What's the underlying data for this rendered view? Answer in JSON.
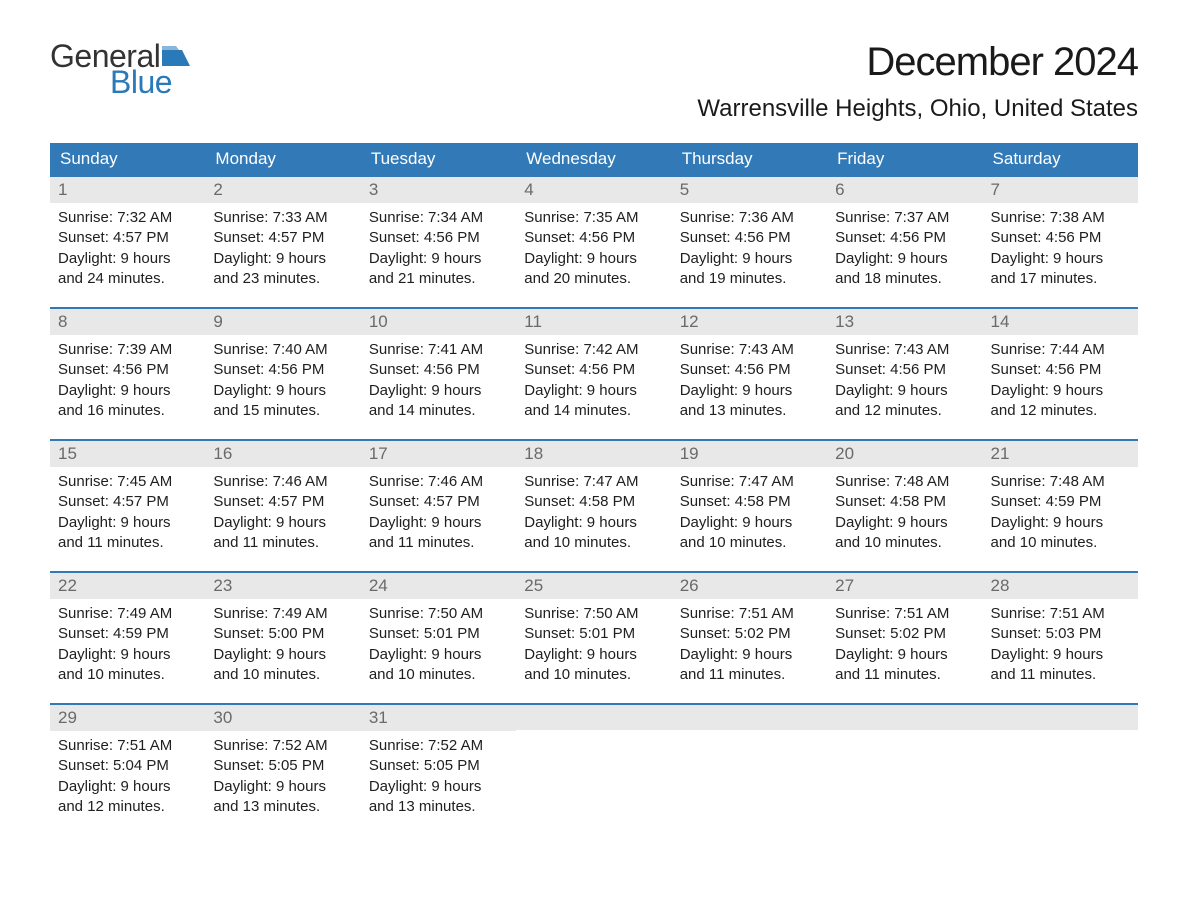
{
  "logo": {
    "word1": "General",
    "word2": "Blue",
    "flag_color": "#2a7ab9",
    "text1_color": "#333333",
    "text2_color": "#2a7ab9"
  },
  "title": "December 2024",
  "location": "Warrensville Heights, Ohio, United States",
  "colors": {
    "header_bg": "#3179b7",
    "header_text": "#ffffff",
    "daynum_bg": "#e8e8e8",
    "daynum_text": "#6a6a6a",
    "body_text": "#202020",
    "row_border": "#3179b7",
    "page_bg": "#ffffff"
  },
  "typography": {
    "title_size": 40,
    "location_size": 24,
    "weekday_size": 17,
    "daynum_size": 17,
    "body_size": 15
  },
  "weekdays": [
    "Sunday",
    "Monday",
    "Tuesday",
    "Wednesday",
    "Thursday",
    "Friday",
    "Saturday"
  ],
  "weeks": [
    [
      {
        "num": "1",
        "sunrise": "Sunrise: 7:32 AM",
        "sunset": "Sunset: 4:57 PM",
        "d1": "Daylight: 9 hours",
        "d2": "and 24 minutes."
      },
      {
        "num": "2",
        "sunrise": "Sunrise: 7:33 AM",
        "sunset": "Sunset: 4:57 PM",
        "d1": "Daylight: 9 hours",
        "d2": "and 23 minutes."
      },
      {
        "num": "3",
        "sunrise": "Sunrise: 7:34 AM",
        "sunset": "Sunset: 4:56 PM",
        "d1": "Daylight: 9 hours",
        "d2": "and 21 minutes."
      },
      {
        "num": "4",
        "sunrise": "Sunrise: 7:35 AM",
        "sunset": "Sunset: 4:56 PM",
        "d1": "Daylight: 9 hours",
        "d2": "and 20 minutes."
      },
      {
        "num": "5",
        "sunrise": "Sunrise: 7:36 AM",
        "sunset": "Sunset: 4:56 PM",
        "d1": "Daylight: 9 hours",
        "d2": "and 19 minutes."
      },
      {
        "num": "6",
        "sunrise": "Sunrise: 7:37 AM",
        "sunset": "Sunset: 4:56 PM",
        "d1": "Daylight: 9 hours",
        "d2": "and 18 minutes."
      },
      {
        "num": "7",
        "sunrise": "Sunrise: 7:38 AM",
        "sunset": "Sunset: 4:56 PM",
        "d1": "Daylight: 9 hours",
        "d2": "and 17 minutes."
      }
    ],
    [
      {
        "num": "8",
        "sunrise": "Sunrise: 7:39 AM",
        "sunset": "Sunset: 4:56 PM",
        "d1": "Daylight: 9 hours",
        "d2": "and 16 minutes."
      },
      {
        "num": "9",
        "sunrise": "Sunrise: 7:40 AM",
        "sunset": "Sunset: 4:56 PM",
        "d1": "Daylight: 9 hours",
        "d2": "and 15 minutes."
      },
      {
        "num": "10",
        "sunrise": "Sunrise: 7:41 AM",
        "sunset": "Sunset: 4:56 PM",
        "d1": "Daylight: 9 hours",
        "d2": "and 14 minutes."
      },
      {
        "num": "11",
        "sunrise": "Sunrise: 7:42 AM",
        "sunset": "Sunset: 4:56 PM",
        "d1": "Daylight: 9 hours",
        "d2": "and 14 minutes."
      },
      {
        "num": "12",
        "sunrise": "Sunrise: 7:43 AM",
        "sunset": "Sunset: 4:56 PM",
        "d1": "Daylight: 9 hours",
        "d2": "and 13 minutes."
      },
      {
        "num": "13",
        "sunrise": "Sunrise: 7:43 AM",
        "sunset": "Sunset: 4:56 PM",
        "d1": "Daylight: 9 hours",
        "d2": "and 12 minutes."
      },
      {
        "num": "14",
        "sunrise": "Sunrise: 7:44 AM",
        "sunset": "Sunset: 4:56 PM",
        "d1": "Daylight: 9 hours",
        "d2": "and 12 minutes."
      }
    ],
    [
      {
        "num": "15",
        "sunrise": "Sunrise: 7:45 AM",
        "sunset": "Sunset: 4:57 PM",
        "d1": "Daylight: 9 hours",
        "d2": "and 11 minutes."
      },
      {
        "num": "16",
        "sunrise": "Sunrise: 7:46 AM",
        "sunset": "Sunset: 4:57 PM",
        "d1": "Daylight: 9 hours",
        "d2": "and 11 minutes."
      },
      {
        "num": "17",
        "sunrise": "Sunrise: 7:46 AM",
        "sunset": "Sunset: 4:57 PM",
        "d1": "Daylight: 9 hours",
        "d2": "and 11 minutes."
      },
      {
        "num": "18",
        "sunrise": "Sunrise: 7:47 AM",
        "sunset": "Sunset: 4:58 PM",
        "d1": "Daylight: 9 hours",
        "d2": "and 10 minutes."
      },
      {
        "num": "19",
        "sunrise": "Sunrise: 7:47 AM",
        "sunset": "Sunset: 4:58 PM",
        "d1": "Daylight: 9 hours",
        "d2": "and 10 minutes."
      },
      {
        "num": "20",
        "sunrise": "Sunrise: 7:48 AM",
        "sunset": "Sunset: 4:58 PM",
        "d1": "Daylight: 9 hours",
        "d2": "and 10 minutes."
      },
      {
        "num": "21",
        "sunrise": "Sunrise: 7:48 AM",
        "sunset": "Sunset: 4:59 PM",
        "d1": "Daylight: 9 hours",
        "d2": "and 10 minutes."
      }
    ],
    [
      {
        "num": "22",
        "sunrise": "Sunrise: 7:49 AM",
        "sunset": "Sunset: 4:59 PM",
        "d1": "Daylight: 9 hours",
        "d2": "and 10 minutes."
      },
      {
        "num": "23",
        "sunrise": "Sunrise: 7:49 AM",
        "sunset": "Sunset: 5:00 PM",
        "d1": "Daylight: 9 hours",
        "d2": "and 10 minutes."
      },
      {
        "num": "24",
        "sunrise": "Sunrise: 7:50 AM",
        "sunset": "Sunset: 5:01 PM",
        "d1": "Daylight: 9 hours",
        "d2": "and 10 minutes."
      },
      {
        "num": "25",
        "sunrise": "Sunrise: 7:50 AM",
        "sunset": "Sunset: 5:01 PM",
        "d1": "Daylight: 9 hours",
        "d2": "and 10 minutes."
      },
      {
        "num": "26",
        "sunrise": "Sunrise: 7:51 AM",
        "sunset": "Sunset: 5:02 PM",
        "d1": "Daylight: 9 hours",
        "d2": "and 11 minutes."
      },
      {
        "num": "27",
        "sunrise": "Sunrise: 7:51 AM",
        "sunset": "Sunset: 5:02 PM",
        "d1": "Daylight: 9 hours",
        "d2": "and 11 minutes."
      },
      {
        "num": "28",
        "sunrise": "Sunrise: 7:51 AM",
        "sunset": "Sunset: 5:03 PM",
        "d1": "Daylight: 9 hours",
        "d2": "and 11 minutes."
      }
    ],
    [
      {
        "num": "29",
        "sunrise": "Sunrise: 7:51 AM",
        "sunset": "Sunset: 5:04 PM",
        "d1": "Daylight: 9 hours",
        "d2": "and 12 minutes."
      },
      {
        "num": "30",
        "sunrise": "Sunrise: 7:52 AM",
        "sunset": "Sunset: 5:05 PM",
        "d1": "Daylight: 9 hours",
        "d2": "and 13 minutes."
      },
      {
        "num": "31",
        "sunrise": "Sunrise: 7:52 AM",
        "sunset": "Sunset: 5:05 PM",
        "d1": "Daylight: 9 hours",
        "d2": "and 13 minutes."
      },
      null,
      null,
      null,
      null
    ]
  ]
}
